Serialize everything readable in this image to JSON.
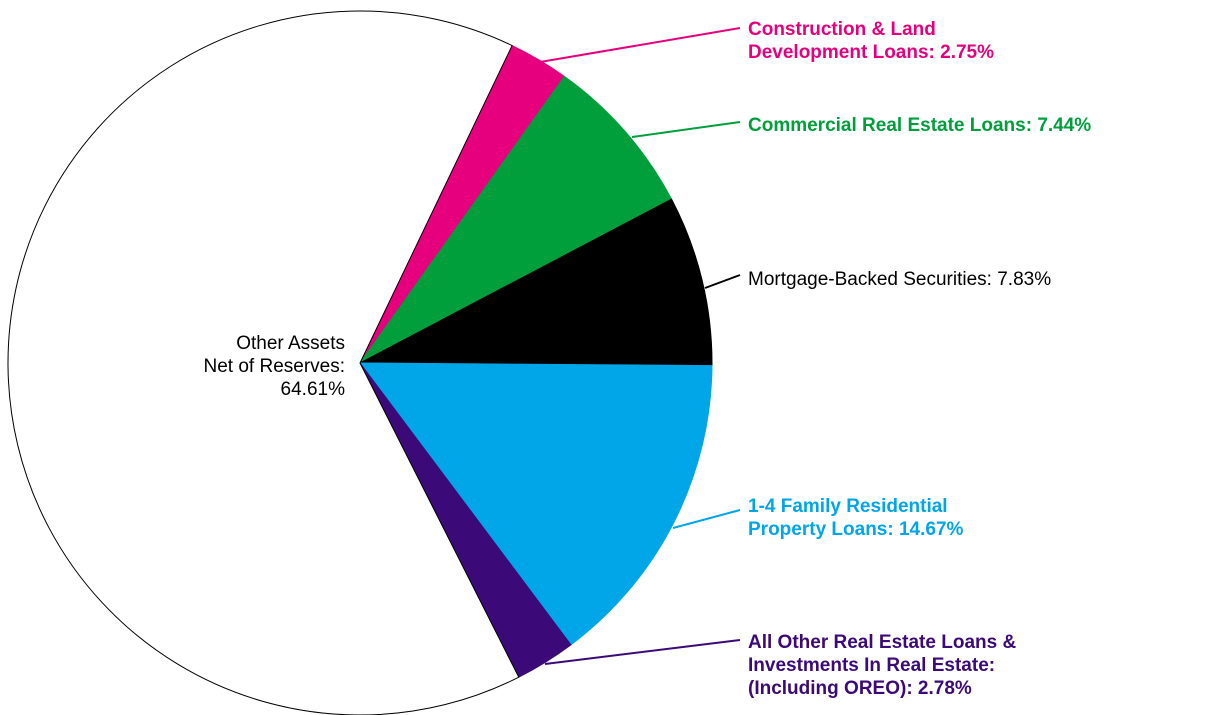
{
  "chart_data": {
    "type": "pie",
    "labels": [
      [
        "Construction & Land",
        "Development Loans: 2.75%"
      ],
      [
        "Commercial Real Estate Loans: 7.44%"
      ],
      [
        "Mortgage-Backed Securities: 7.83%"
      ],
      [
        "1-4 Family Residential",
        "Property Loans: 14.67%"
      ],
      [
        "All Other Real Estate Loans &",
        "Investments In Real Estate:",
        "(Including OREO): 2.78%"
      ],
      [
        "Other Assets",
        "Net of Reserves:",
        "64.61%"
      ]
    ],
    "values": [
      2.75,
      7.44,
      7.83,
      14.67,
      2.78,
      64.61
    ],
    "colors": [
      "#e6007e",
      "#009f3c",
      "#000000",
      "#00a6e8",
      "#3b0a78",
      "#ffffff"
    ]
  }
}
